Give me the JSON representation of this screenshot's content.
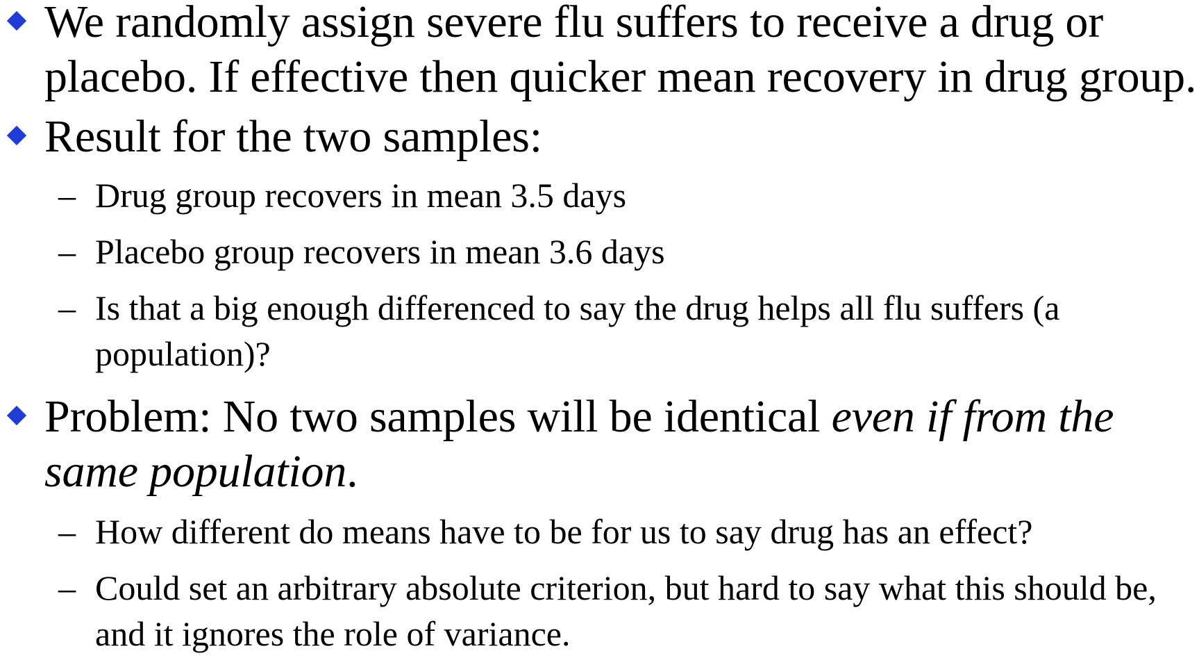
{
  "bullets": [
    {
      "text": "We randomly assign severe flu suffers to receive a drug or placebo. If effective then quicker mean recovery in drug group."
    },
    {
      "text": "Result for the two samples:",
      "sub": [
        "Drug group recovers in mean 3.5 days",
        "Placebo group recovers in mean 3.6 days",
        "Is that a big enough differenced to say the drug helps all flu suffers (a population)?"
      ]
    },
    {
      "text_pre": "Problem: No two samples will be identical ",
      "text_italic": "even if from the same population",
      "text_post": ".",
      "sub": [
        "How different do means have to be for us to say drug has an effect?",
        "Could set an arbitrary absolute criterion, but hard to say what this should be, and it ignores the role of variance."
      ]
    }
  ],
  "dash_glyph": "–",
  "colors": {
    "bullet_marker": "#1f3bd8",
    "text": "#000000",
    "background": "#ffffff"
  }
}
